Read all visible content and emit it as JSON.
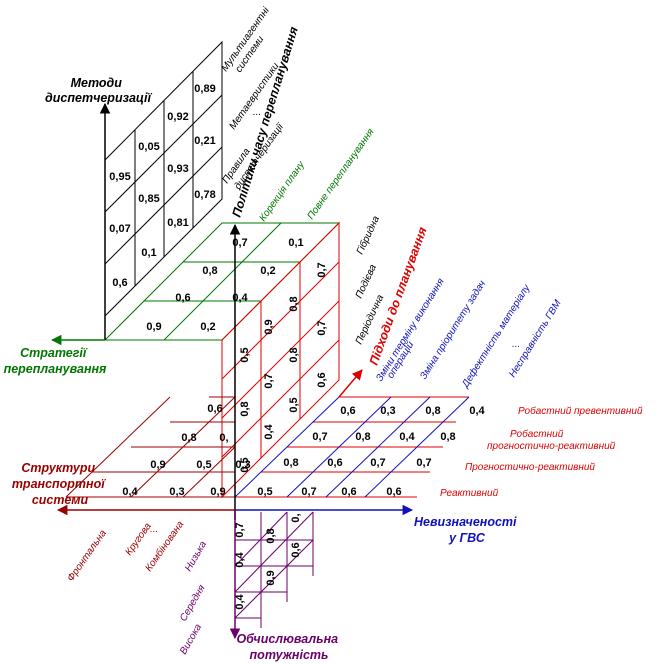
{
  "axes": {
    "methods": [
      "Методи",
      "диспетчеризації"
    ],
    "policies": "Політики часу перепланування",
    "strategies": [
      "Стратегії",
      "перепланування"
    ],
    "approaches": "Підходи до планування",
    "structures": [
      "Структури",
      "транспортної",
      "системи"
    ],
    "uncertainties": [
      "Невизначеності",
      "у ГВС"
    ],
    "power": [
      "Обчислювальна",
      "потужність"
    ]
  },
  "methods_labels": [
    "Мультиагентні",
    "системи",
    "Метаевристики",
    "...",
    "Правила",
    "диспетчеризації"
  ],
  "policy_labels": [
    "Гібридна",
    "Подієва",
    "Періодична"
  ],
  "strategy_labels": [
    "Корекція плану",
    "Повне перепланування"
  ],
  "uncertainty_labels": [
    "Зміни терміну виконання",
    "операцій",
    "Зміна пріоритету задач",
    "Дефектність матеріалу",
    "...",
    "Несправність ГВМ"
  ],
  "approach_labels": [
    "Робастний превентивний",
    "Робастний",
    "прогностично-реактивний",
    "Прогностично-реактивний",
    "Реактивний"
  ],
  "structure_labels": [
    "Фронтальна",
    "Кругова",
    "...",
    "Комбінована"
  ],
  "power_labels": [
    "Низька",
    "Середня",
    "Висока"
  ],
  "cells": {
    "methods_grid": [
      "0,95",
      "0,05",
      "0,92",
      "0,89",
      "0,07",
      "0,85",
      "0,93",
      "0,21",
      "0,6",
      "0,1",
      "0,81",
      "0,78"
    ],
    "strategy_grid": [
      "0,7",
      "0,1",
      "0,8",
      "0,2",
      "0,6",
      "0,4",
      "0,9",
      "0,2"
    ],
    "policy_grid": [
      "0,7",
      "0,8",
      "0,7",
      "0,9",
      "0,8",
      "0,5",
      "0,7",
      "0,5",
      "0,8",
      "0,4",
      "0,6",
      "0,5"
    ],
    "approach_grid": [
      "0,6",
      "0,3",
      "0,8",
      "0,4",
      "0,7",
      "0,8",
      "0,4",
      "0,8",
      "0,8",
      "0,6",
      "0,7",
      "0,7",
      "0,5",
      "0,7",
      "0,6",
      "0,6"
    ],
    "structure_grid": [
      "0,6",
      "0,8",
      "0,",
      "0,9",
      "0,5",
      "0,3",
      "0,4",
      "0,3",
      "0,9"
    ],
    "power_grid": [
      "0,7",
      "0,",
      "0,4",
      "0,8",
      "0,6",
      "0,4",
      "0,9"
    ]
  },
  "colors": {
    "black": "#000000",
    "red": "#dd0000",
    "green": "#007700",
    "blue": "#1111bb",
    "darkred": "#990000",
    "purple": "#6a006a"
  }
}
